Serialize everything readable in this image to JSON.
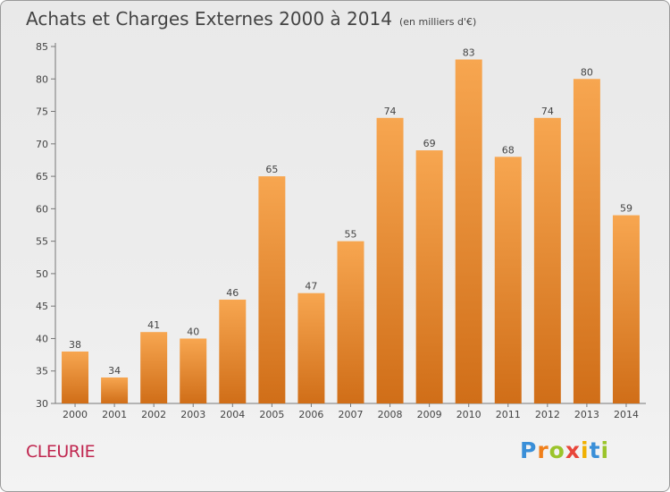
{
  "chart_data": {
    "type": "bar",
    "title": "Achats et Charges Externes 2000 à 2014",
    "subtitle": "(en milliers d'€)",
    "categories": [
      "2000",
      "2001",
      "2002",
      "2003",
      "2004",
      "2005",
      "2006",
      "2007",
      "2008",
      "2009",
      "2010",
      "2011",
      "2012",
      "2013",
      "2014"
    ],
    "values": [
      38,
      34,
      41,
      40,
      46,
      65,
      47,
      55,
      74,
      69,
      83,
      68,
      74,
      80,
      59
    ],
    "ylim": [
      30,
      85
    ],
    "yticks": [
      30,
      35,
      40,
      45,
      50,
      55,
      60,
      65,
      70,
      75,
      80,
      85
    ],
    "grid": false,
    "bar_color_top": "#f7a650",
    "bar_color_bottom": "#d06e18"
  },
  "commune": "CLEURIE",
  "logo": {
    "letters": [
      "P",
      "r",
      "o",
      "x",
      "i",
      "t",
      "i"
    ],
    "colors": [
      "#3a8fd8",
      "#f07f1a",
      "#9bc42b",
      "#e8463a",
      "#f0b000",
      "#3a8fd8",
      "#9bc42b"
    ]
  }
}
